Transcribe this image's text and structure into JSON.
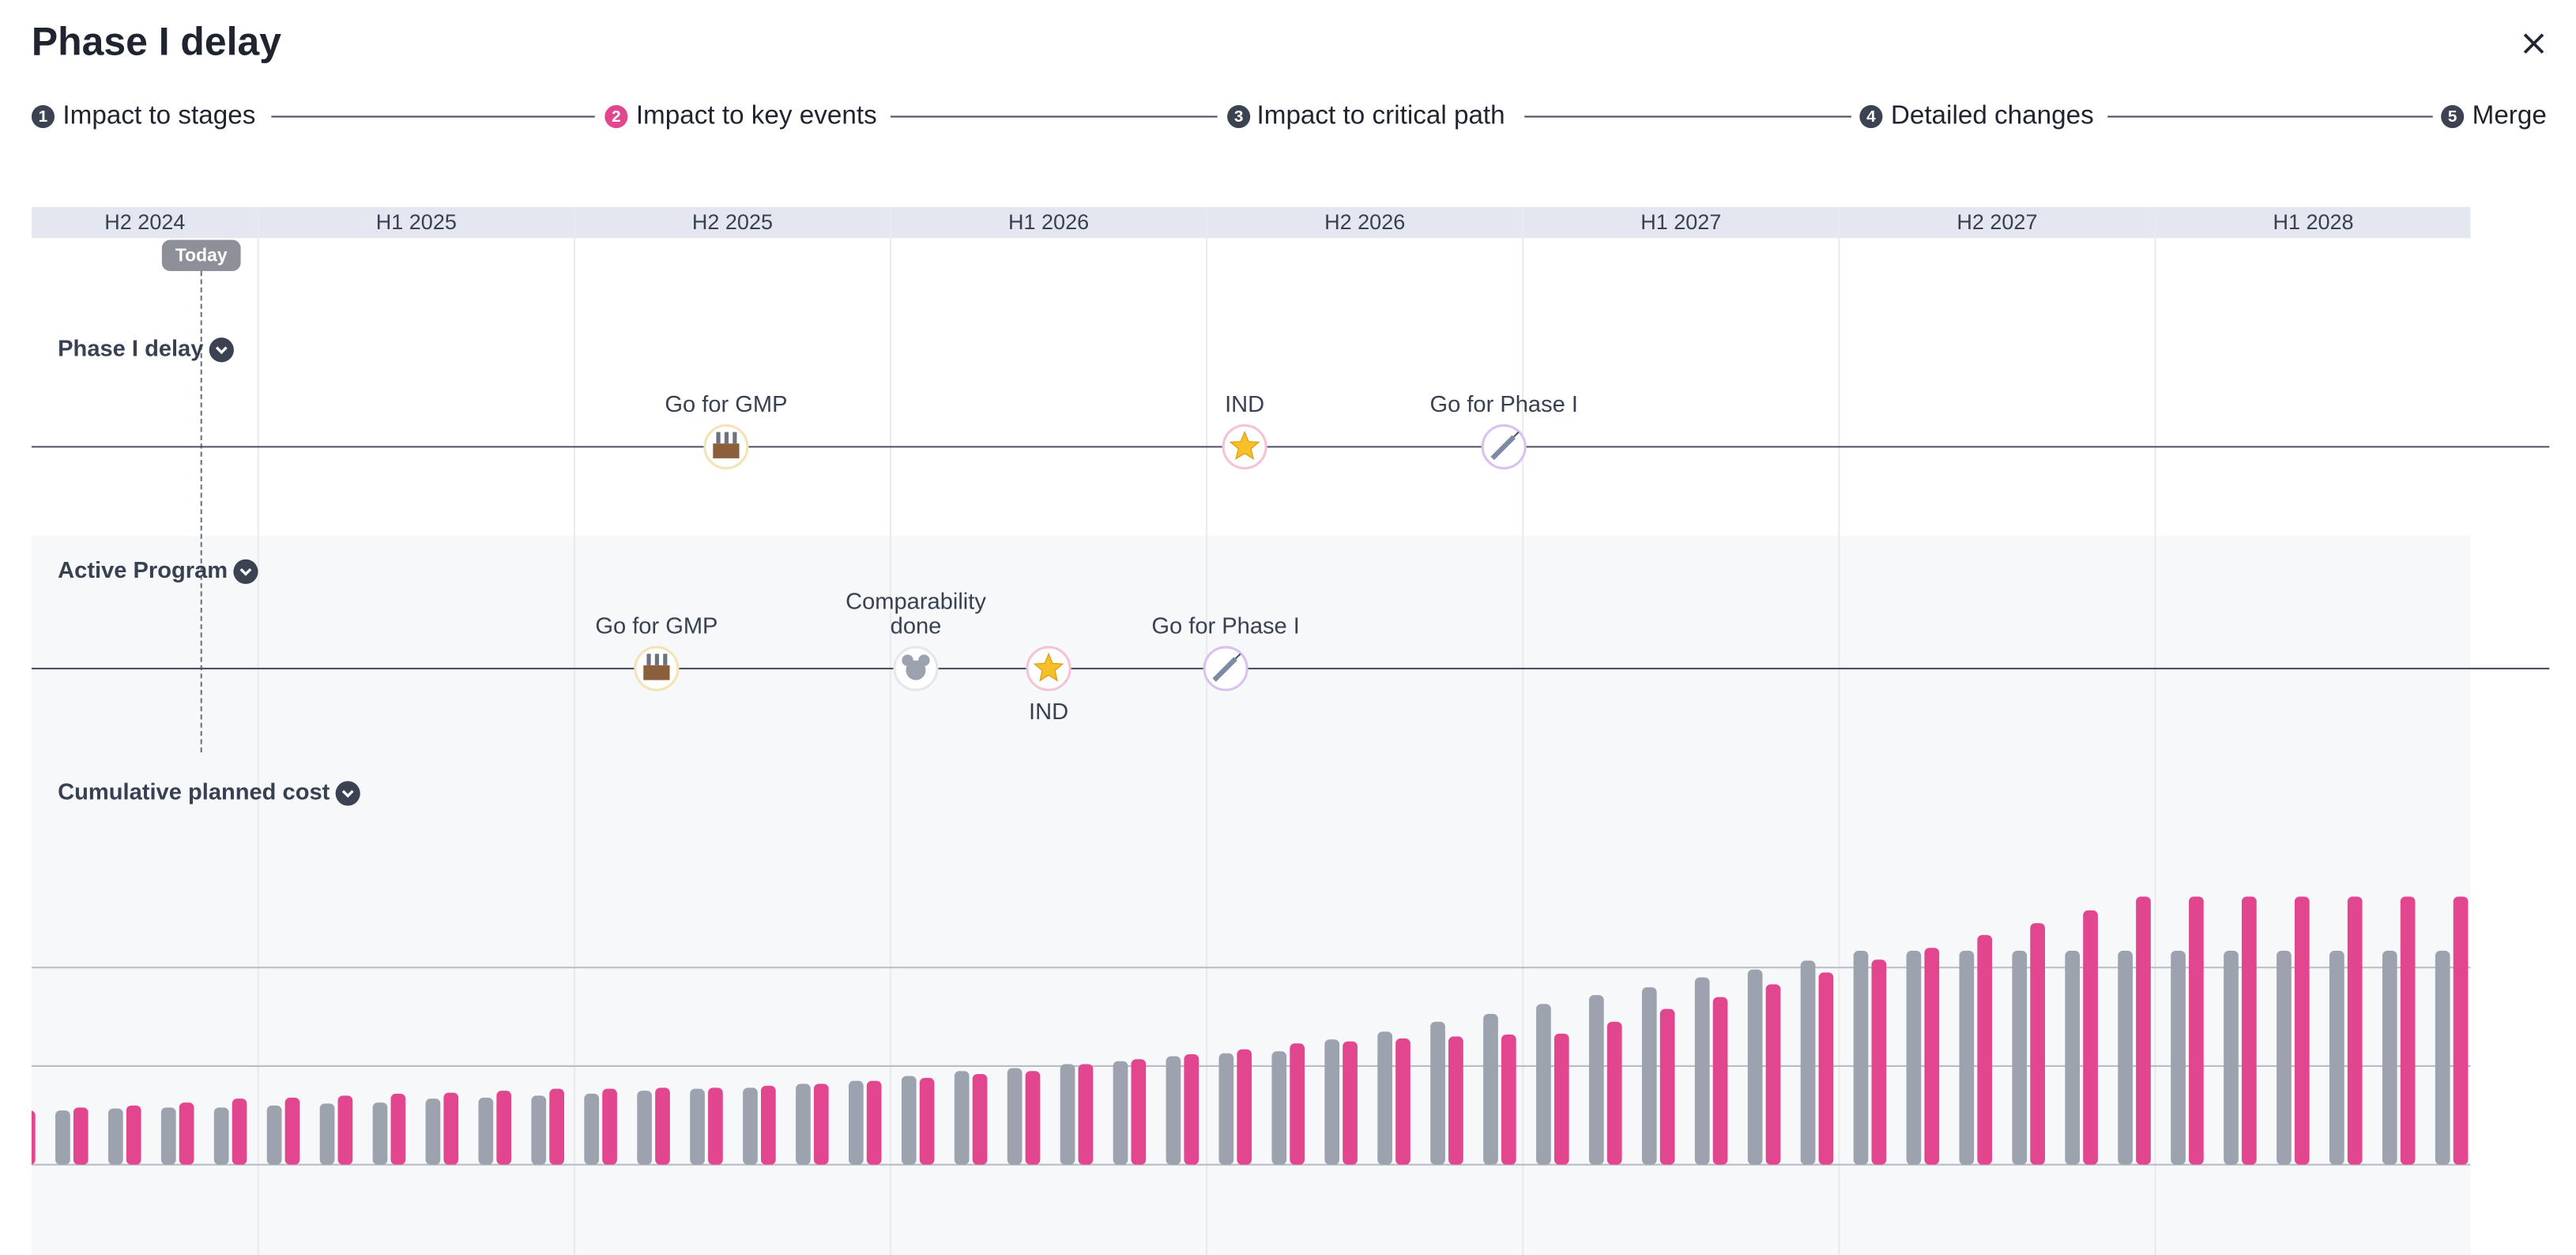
{
  "header": {
    "title": "Phase I delay"
  },
  "steps": [
    {
      "number": "1",
      "label": "Impact to stages"
    },
    {
      "number": "2",
      "label": "Impact to key events",
      "active": true
    },
    {
      "number": "3",
      "label": "Impact to critical path"
    },
    {
      "number": "4",
      "label": "Detailed changes"
    },
    {
      "number": "5",
      "label": "Merge"
    }
  ],
  "timeline": {
    "periods": [
      "H2 2024",
      "H1 2025",
      "H2 2025",
      "H1 2026",
      "H2 2026",
      "H1 2027",
      "H2 2027",
      "H1 2028"
    ],
    "today": {
      "label": "Today",
      "date": 2024.91
    }
  },
  "lanes": [
    {
      "label": "Phase I delay",
      "milestones": [
        {
          "label": "Go for GMP",
          "date": 2025.74,
          "icon": "factory"
        },
        {
          "label": "IND",
          "date": 2026.56,
          "icon": "star"
        },
        {
          "label": "Go for Phase I",
          "date": 2026.97,
          "icon": "syringe"
        }
      ]
    },
    {
      "label": "Active Program",
      "milestones": [
        {
          "label": "Go for GMP",
          "date": 2025.63,
          "icon": "factory"
        },
        {
          "label": [
            "Comparability",
            "done"
          ],
          "date": 2026.04,
          "icon": "mouse"
        },
        {
          "label": "IND",
          "date": 2026.25,
          "icon": "star",
          "label_position": "below"
        },
        {
          "label": "Go for Phase I",
          "date": 2026.53,
          "icon": "syringe"
        }
      ]
    }
  ],
  "chart_data": {
    "type": "bar",
    "title": "Cumulative planned cost",
    "ylim": [
      0,
      3
    ],
    "grid_lines": [
      0,
      1,
      2
    ],
    "series": [
      {
        "color": "#9ca3af",
        "values": [
          null,
          0.55,
          0.57,
          0.58,
          0.58,
          0.6,
          0.62,
          0.63,
          0.67,
          0.68,
          0.7,
          0.72,
          0.75,
          0.77,
          0.78,
          0.82,
          0.85,
          0.9,
          0.95,
          0.98,
          1.02,
          1.05,
          1.1,
          1.13,
          1.15,
          1.27,
          1.35,
          1.45,
          1.53,
          1.63,
          1.72,
          1.8,
          1.9,
          1.98,
          2.07,
          2.17,
          2.17,
          2.17,
          2.17,
          2.17,
          2.17,
          2.17,
          2.17,
          2.17,
          2.17,
          2.17,
          2.17
        ]
      },
      {
        "color": "#e2468e",
        "values": [
          0.55,
          0.58,
          0.6,
          0.63,
          0.67,
          0.68,
          0.7,
          0.72,
          0.73,
          0.75,
          0.77,
          0.77,
          0.78,
          0.78,
          0.8,
          0.82,
          0.85,
          0.88,
          0.92,
          0.95,
          1.02,
          1.07,
          1.12,
          1.17,
          1.23,
          1.25,
          1.28,
          1.3,
          1.32,
          1.33,
          1.45,
          1.58,
          1.7,
          1.83,
          1.95,
          2.08,
          2.2,
          2.33,
          2.45,
          2.58,
          2.72,
          2.72,
          2.72,
          2.72,
          2.72,
          2.72,
          2.72
        ]
      }
    ]
  }
}
